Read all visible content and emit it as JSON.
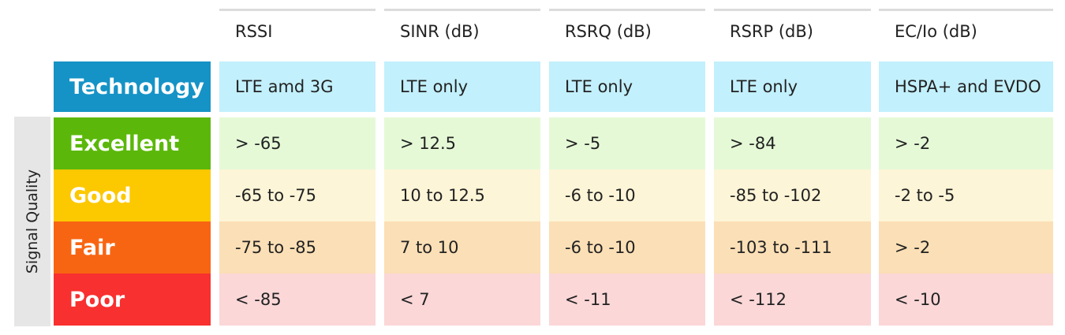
{
  "side_label": "Signal Quality",
  "columns": [
    "RSSI",
    "SINR (dB)",
    "RSRQ (dB)",
    "RSRP (dB)",
    "EC/Io (dB)"
  ],
  "rows": [
    {
      "label": "Technology",
      "label_color": "#1593c6",
      "cell_color": "#c2f0fc",
      "cells": [
        "LTE amd 3G",
        "LTE only",
        "LTE only",
        "LTE only",
        "HSPA+ and EVDO"
      ]
    },
    {
      "label": "Excellent",
      "label_color": "#5bb80a",
      "cell_color": "#e5f9d7",
      "cells": [
        "> -65",
        "> 12.5",
        "> -5",
        "> -84",
        "> -2"
      ]
    },
    {
      "label": "Good",
      "label_color": "#fcc800",
      "cell_color": "#fdf5d7",
      "cells": [
        "-65 to -75",
        "10 to 12.5",
        "-6 to -10",
        "-85 to -102",
        "-2 to -5"
      ]
    },
    {
      "label": "Fair",
      "label_color": "#f86512",
      "cell_color": "#fbdfb6",
      "cells": [
        "-75 to -85",
        "7 to 10",
        "-6 to -10",
        "-103 to -111",
        "> -2"
      ]
    },
    {
      "label": "Poor",
      "label_color": "#f8302f",
      "cell_color": "#fbd7d8",
      "cells": [
        "< -85",
        "< 7",
        "< -11",
        "< -112",
        "< -10"
      ]
    }
  ]
}
